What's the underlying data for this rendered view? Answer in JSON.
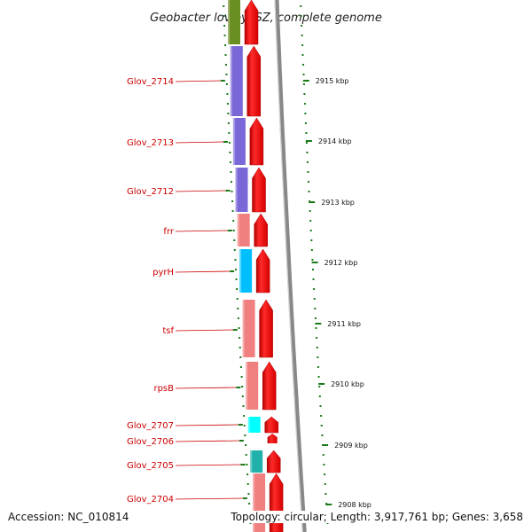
{
  "title": "Geobacter lovleyi SZ, complete genome",
  "footer": {
    "accession": "Accession: NC_010814",
    "summary": "Topology: circular; Length: 3,917,761 bp; Genes: 3,658"
  },
  "colors": {
    "gene_arrow": "#ff0000",
    "backbone": "#888888",
    "tick": "#1a7a1a",
    "label": "#cc0000"
  },
  "genes": [
    {
      "label": "",
      "color": "#6b8e23"
    },
    {
      "label": "Glov_2714",
      "color": "#7b68d8"
    },
    {
      "label": "Glov_2713",
      "color": "#7b68d8"
    },
    {
      "label": "Glov_2712",
      "color": "#7b68d8"
    },
    {
      "label": "frr",
      "color": "#f08080"
    },
    {
      "label": "pyrH",
      "color": "#00bfff"
    },
    {
      "label": "tsf",
      "color": "#f08080"
    },
    {
      "label": "rpsB",
      "color": "#f08080"
    },
    {
      "label": "Glov_2707",
      "color": "#00ffff"
    },
    {
      "label": "Glov_2706",
      "color": ""
    },
    {
      "label": "Glov_2705",
      "color": "#20b2aa"
    },
    {
      "label": "Glov_2704",
      "color": "#f08080"
    }
  ],
  "scale": [
    "2915 kbp",
    "2914 kbp",
    "2913 kbp",
    "2912 kbp",
    "2911 kbp",
    "2910 kbp",
    "2909 kbp",
    "2908 kbp"
  ]
}
